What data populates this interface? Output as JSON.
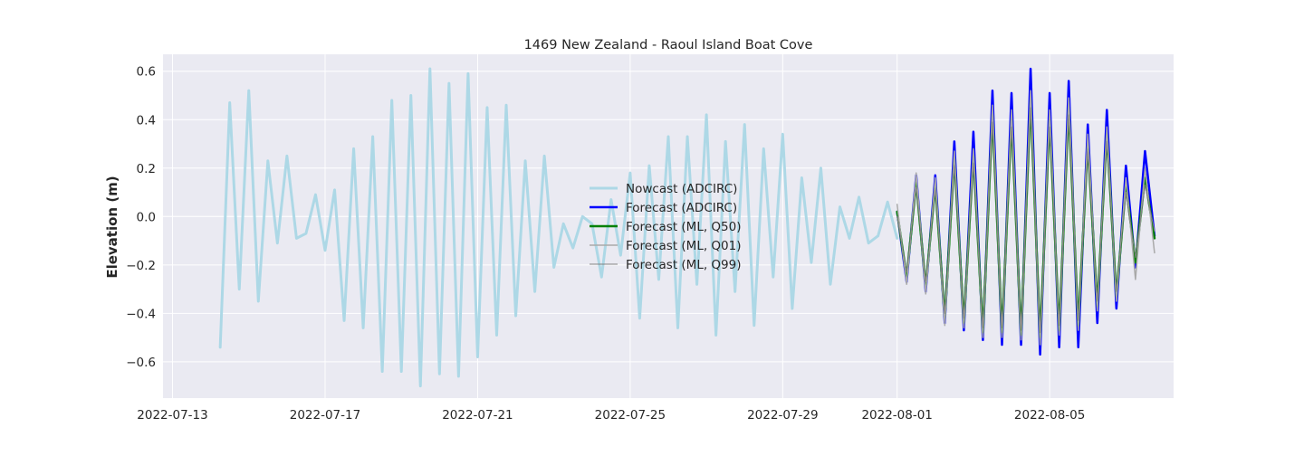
{
  "chart_data": {
    "type": "line",
    "title": "1469 New Zealand - Raoul Island Boat Cove",
    "xlabel": "",
    "ylabel": "Elevation (m)",
    "xlim": [
      "2022-07-12T18:00",
      "2022-08-08T06:00"
    ],
    "ylim": [
      -0.75,
      0.67
    ],
    "x_ticks": [
      "2022-07-13",
      "2022-07-17",
      "2022-07-21",
      "2022-07-25",
      "2022-07-29",
      "2022-08-01",
      "2022-08-05"
    ],
    "y_ticks": [
      -0.6,
      -0.4,
      -0.2,
      0.0,
      0.2,
      0.4,
      0.6
    ],
    "y_tick_labels": [
      "−0.6",
      "−0.4",
      "−0.2",
      "0.0",
      "0.2",
      "0.4",
      "0.6"
    ],
    "grid": true,
    "legend_position": "center",
    "background": "#eaeaf2",
    "series": [
      {
        "name": "Nowcast (ADCIRC)",
        "color": "#add8e6",
        "width": 3,
        "start": "2022-07-14T06:00",
        "step_hours": 6,
        "values": [
          -0.54,
          0.47,
          -0.3,
          0.52,
          -0.35,
          0.23,
          -0.11,
          0.25,
          -0.09,
          -0.07,
          0.09,
          -0.14,
          0.11,
          -0.43,
          0.28,
          -0.46,
          0.33,
          -0.64,
          0.48,
          -0.64,
          0.5,
          -0.7,
          0.61,
          -0.65,
          0.55,
          -0.66,
          0.59,
          -0.58,
          0.45,
          -0.49,
          0.46,
          -0.41,
          0.23,
          -0.31,
          0.25,
          -0.21,
          -0.03,
          -0.13,
          0.0,
          -0.03,
          -0.25,
          0.07,
          -0.16,
          0.18,
          -0.42,
          0.21,
          -0.26,
          0.33,
          -0.46,
          0.33,
          -0.28,
          0.42,
          -0.49,
          0.31,
          -0.31,
          0.38,
          -0.45,
          0.28,
          -0.25,
          0.34,
          -0.38,
          0.16,
          -0.19,
          0.2,
          -0.28,
          0.04,
          -0.09,
          0.08,
          -0.11,
          -0.08,
          0.06,
          -0.09
        ]
      },
      {
        "name": "Forecast (ADCIRC)",
        "color": "#0000ff",
        "width": 2.5,
        "start": "2022-08-01T00:00",
        "step_hours": 6,
        "values": [
          0.02,
          -0.27,
          0.17,
          -0.31,
          0.17,
          -0.44,
          0.31,
          -0.47,
          0.35,
          -0.51,
          0.52,
          -0.53,
          0.51,
          -0.53,
          0.61,
          -0.57,
          0.51,
          -0.54,
          0.56,
          -0.54,
          0.38,
          -0.44,
          0.44,
          -0.38,
          0.21,
          -0.21,
          0.27,
          -0.08
        ]
      },
      {
        "name": "Forecast (ML, Q50)",
        "color": "#008000",
        "width": 2.5,
        "start": "2022-08-01T00:00",
        "step_hours": 6,
        "values": [
          0.02,
          -0.25,
          0.14,
          -0.29,
          0.13,
          -0.42,
          0.24,
          -0.44,
          0.25,
          -0.48,
          0.42,
          -0.48,
          0.4,
          -0.49,
          0.48,
          -0.5,
          0.4,
          -0.47,
          0.45,
          -0.45,
          0.3,
          -0.37,
          0.34,
          -0.33,
          0.13,
          -0.19,
          0.16,
          -0.09
        ]
      },
      {
        "name": "Forecast (ML, Q01)",
        "color": "#a9a9a9",
        "width": 1.5,
        "start": "2022-08-01T00:00",
        "step_hours": 6,
        "values": [
          0.05,
          -0.28,
          0.18,
          -0.32,
          0.16,
          -0.45,
          0.27,
          -0.46,
          0.28,
          -0.5,
          0.46,
          -0.5,
          0.44,
          -0.51,
          0.52,
          -0.53,
          0.44,
          -0.49,
          0.49,
          -0.47,
          0.34,
          -0.39,
          0.37,
          -0.35,
          0.16,
          -0.26,
          0.2,
          -0.15
        ]
      },
      {
        "name": "Forecast (ML, Q99)",
        "color": "#808080",
        "width": 1,
        "start": "2022-08-01T00:00",
        "step_hours": 6,
        "values": [
          0.0,
          -0.23,
          0.12,
          -0.27,
          0.11,
          -0.4,
          0.21,
          -0.42,
          0.22,
          -0.46,
          0.39,
          -0.46,
          0.37,
          -0.47,
          0.45,
          -0.48,
          0.37,
          -0.45,
          0.42,
          -0.43,
          0.27,
          -0.35,
          0.31,
          -0.31,
          0.1,
          -0.17,
          0.13,
          -0.06
        ]
      }
    ]
  }
}
